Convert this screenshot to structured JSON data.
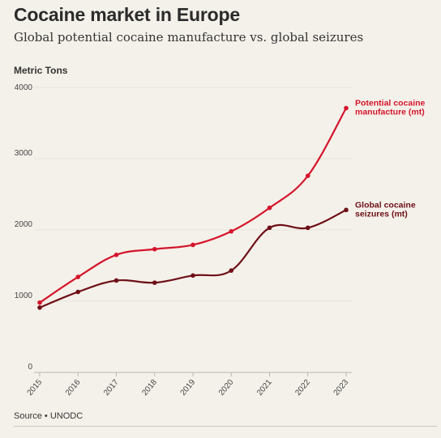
{
  "header": {
    "title": "Cocaine market in Europe",
    "subtitle": "Global potential cocaine manufacture vs. global seizures"
  },
  "footer": {
    "source": "Source • UNODC"
  },
  "chart_data": {
    "type": "line",
    "title": "Cocaine market in Europe",
    "subtitle": "Global potential cocaine manufacture vs. global seizures",
    "ylabel": "Metric Tons",
    "xlabel": "",
    "x": [
      "2015",
      "2016",
      "2017",
      "2018",
      "2019",
      "2020",
      "2021",
      "2022",
      "2023"
    ],
    "ylim": [
      0,
      4000
    ],
    "yticks": [
      0,
      1000,
      2000,
      3000,
      4000
    ],
    "grid": true,
    "legend": "inline-right",
    "series": [
      {
        "name_lines": [
          "Potential cocaine",
          "manufacture (mt)"
        ],
        "color": "#d4152b",
        "values": [
          980,
          1340,
          1650,
          1730,
          1790,
          1980,
          2310,
          2760,
          3710
        ]
      },
      {
        "name_lines": [
          "Global cocaine",
          "seizures (mt)"
        ],
        "color": "#6e0f17",
        "values": [
          910,
          1130,
          1290,
          1260,
          1360,
          1430,
          2030,
          2030,
          2280
        ]
      }
    ]
  }
}
